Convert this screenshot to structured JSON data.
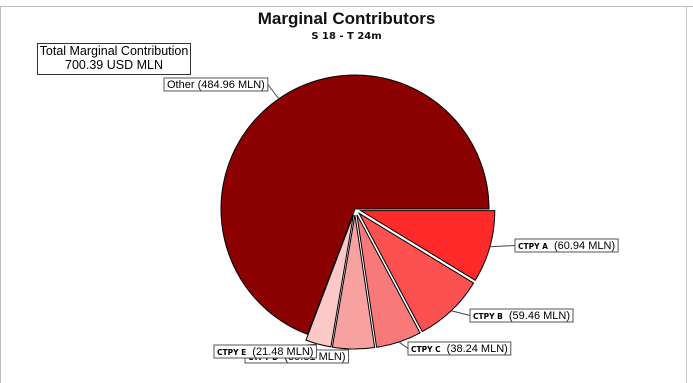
{
  "chart_data": {
    "type": "pie",
    "title": "Marginal Contributors",
    "subtitle": "S 18 - T 24m",
    "total": {
      "label": "Total Marginal Contribution",
      "value": "700.39 USD MLN"
    },
    "slices": [
      {
        "name": "CTPY A",
        "value": 60.94,
        "value_label": "(60.94 MLN)",
        "color": "#ff2a2a",
        "exploded": true
      },
      {
        "name": "CTPY B",
        "value": 59.46,
        "value_label": "(59.46 MLN)",
        "color": "#fb5151",
        "exploded": true
      },
      {
        "name": "CTPY C",
        "value": 38.24,
        "value_label": "(38.24 MLN)",
        "color": "#f87979",
        "exploded": true
      },
      {
        "name": "CTPY D",
        "value": 35.31,
        "value_label": "(35.31 MLN)",
        "color": "#f8a1a1",
        "exploded": true
      },
      {
        "name": "CTPY E",
        "value": 21.48,
        "value_label": "(21.48 MLN)",
        "color": "#fcc8c8",
        "exploded": true
      },
      {
        "name": "Other",
        "value": 484.96,
        "value_label": "(484.96 MLN)",
        "color": "#8b0000",
        "exploded": false
      }
    ]
  }
}
